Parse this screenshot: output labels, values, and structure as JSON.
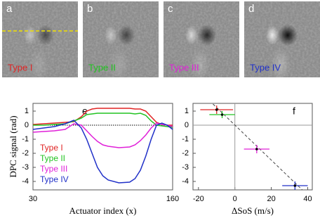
{
  "images": [
    {
      "label": "a",
      "caption": "Type I",
      "caption_color": "#e02424",
      "shading": 0.55
    },
    {
      "label": "b",
      "caption": "Type II",
      "caption_color": "#22c322",
      "shading": 0.6
    },
    {
      "label": "c",
      "caption": "Type III",
      "caption_color": "#e020d8",
      "shading": 0.8
    },
    {
      "label": "d",
      "caption": "Type IV",
      "caption_color": "#2030c8",
      "shading": 1.0
    }
  ],
  "chart_data": [
    {
      "type": "line",
      "panel_label": "e",
      "xlabel": "Actuator index (x)",
      "ylabel": "DPC signal (rad)",
      "x": [
        30,
        40,
        50,
        60,
        68,
        75,
        80,
        85,
        90,
        95,
        100,
        110,
        120,
        125,
        130,
        135,
        140,
        145,
        150,
        155,
        160
      ],
      "series": [
        {
          "name": "Type I",
          "color": "#e02424",
          "values": [
            0.05,
            0.1,
            0.15,
            0.2,
            0.25,
            0.6,
            1.0,
            1.15,
            1.2,
            1.2,
            1.2,
            1.2,
            1.2,
            1.15,
            1.15,
            1.0,
            0.6,
            0.2,
            0.05,
            0.0,
            0.0
          ]
        },
        {
          "name": "Type II",
          "color": "#22c322",
          "values": [
            0.0,
            0.0,
            0.05,
            0.1,
            0.3,
            0.5,
            0.75,
            0.8,
            0.85,
            0.85,
            0.85,
            0.85,
            0.85,
            0.8,
            0.85,
            0.7,
            0.3,
            0.0,
            -0.05,
            -0.1,
            -0.15
          ]
        },
        {
          "name": "Type III",
          "color": "#e020d8",
          "values": [
            -0.5,
            -0.45,
            -0.4,
            -0.3,
            0.1,
            0.0,
            -0.4,
            -0.8,
            -1.15,
            -1.4,
            -1.5,
            -1.6,
            -1.55,
            -1.4,
            -1.1,
            -0.7,
            -0.2,
            0.15,
            0.05,
            0.0,
            -0.1
          ]
        },
        {
          "name": "Type IV",
          "color": "#2030c8",
          "values": [
            -0.3,
            -0.2,
            -0.1,
            0.1,
            0.35,
            -0.2,
            -1.0,
            -2.0,
            -3.0,
            -3.6,
            -3.9,
            -4.1,
            -4.05,
            -3.8,
            -3.2,
            -2.2,
            -1.0,
            0.0,
            0.15,
            0.0,
            -0.3
          ]
        }
      ],
      "xlim": [
        30,
        160
      ],
      "ylim": [
        -4.6,
        1.55
      ],
      "xticks": [
        30,
        160
      ],
      "yticks": [
        1,
        0,
        -1,
        -2,
        -3,
        -4
      ],
      "zero_line": true,
      "legend": "left"
    },
    {
      "type": "errorbar",
      "panel_label": "f",
      "xlabel": "ΔSoS (m/s)",
      "series": [
        {
          "color": "#e02424",
          "x": [
            -10
          ],
          "values": [
            1.1
          ],
          "xerr": [
            9
          ],
          "yerr": [
            0.3
          ]
        },
        {
          "color": "#22c322",
          "x": [
            -7
          ],
          "values": [
            0.75
          ],
          "xerr": [
            7
          ],
          "yerr": [
            0.25
          ]
        },
        {
          "color": "#e020d8",
          "x": [
            12
          ],
          "values": [
            -1.7
          ],
          "xerr": [
            7
          ],
          "yerr": [
            0.3
          ]
        },
        {
          "color": "#2030c8",
          "x": [
            33
          ],
          "values": [
            -4.3
          ],
          "xerr": [
            7
          ],
          "yerr": [
            0.3
          ]
        }
      ],
      "trend_line": {
        "x": [
          -12,
          37
        ],
        "y": [
          1.5,
          -4.6
        ]
      },
      "xlim": [
        -23,
        42.5
      ],
      "ylim": [
        -4.6,
        1.55
      ],
      "xticks": [
        -20,
        0,
        20,
        40
      ],
      "yticks": [
        1,
        0,
        -1,
        -2,
        -3,
        -4
      ],
      "zero_line": true
    }
  ]
}
